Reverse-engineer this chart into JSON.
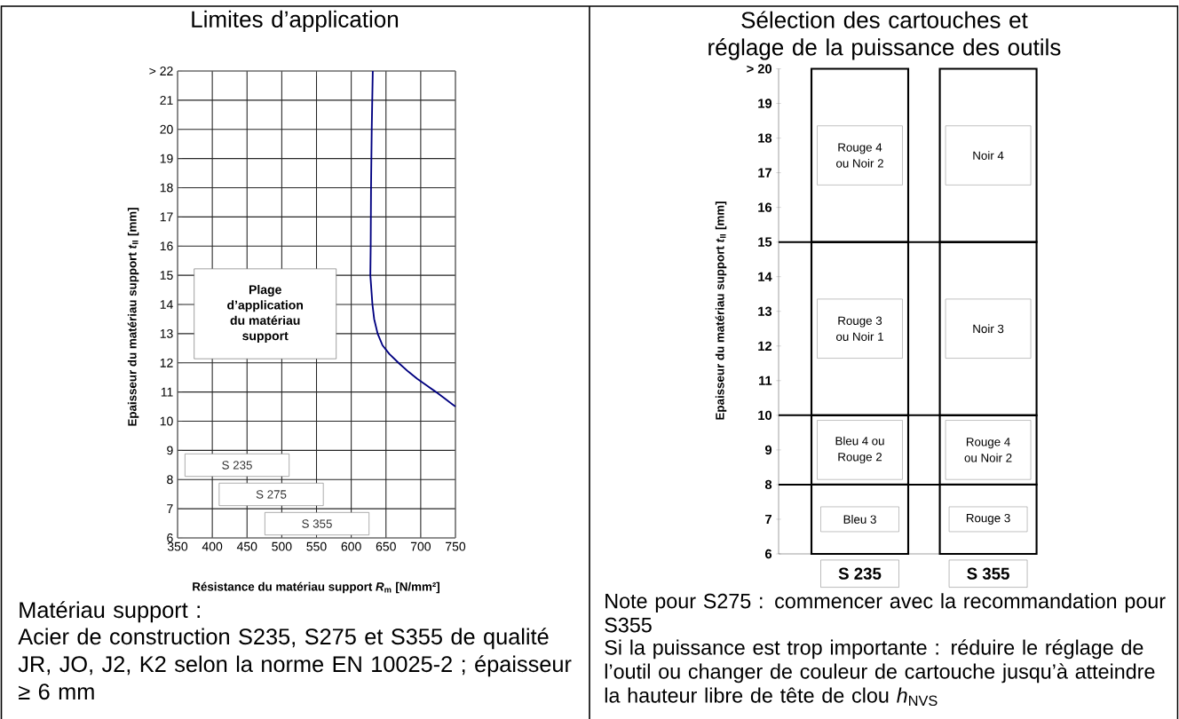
{
  "chart_data": [
    {
      "type": "line",
      "title": "Limites d’application",
      "xlabel": "Résistance du matériau support *R*$_{m}$ [N/mm²]",
      "ylabel": "Epaisseur du matériau support *t*$_{II}$ [mm]",
      "series": [
        {
          "color": "#000080",
          "x": [
            631,
            629.5,
            628.5,
            628,
            627.5,
            629,
            630.5,
            633,
            638,
            645,
            655,
            668,
            682,
            695,
            710,
            722,
            736,
            750
          ],
          "values": [
            22,
            20,
            18,
            16,
            15,
            14.5,
            14,
            13.5,
            13,
            12.6,
            12.3,
            12,
            11.7,
            11.45,
            11.2,
            11,
            10.75,
            10.5
          ]
        }
      ],
      "xlim": [
        350,
        750
      ],
      "xticks": [
        350,
        400,
        450,
        500,
        550,
        600,
        650,
        700,
        750
      ],
      "ylim": [
        6,
        22
      ],
      "yticks": [
        6,
        7,
        8,
        9,
        10,
        11,
        12,
        13,
        14,
        15,
        16,
        17,
        18,
        19,
        20,
        21,
        {
          "value": 22,
          "label": "> 22"
        }
      ],
      "grid": true,
      "annotations": [
        "Plage d’application du matériau support",
        "S 235",
        "S 275",
        "S 355",
        "Matériau support :",
        "Acier de construction S235, S275 et S355 de qualité JR, JO, J2, K2 selon la norme EN 10025-2 ; épaisseur ≥ 6 mm"
      ]
    },
    {
      "type": "bar",
      "title": "Sélection des cartouches et réglage de la puissance des outils",
      "ylabel": "Epaisseur du matériau support *t*$_{II}$ [mm]",
      "categories": [
        "S 235",
        "S 355"
      ],
      "series": [
        {
          "color": "#ffffff",
          "base": [
            6,
            6
          ],
          "values": [
            2,
            2
          ],
          "value_labels": [
            "Bleu 3",
            "Rouge 3"
          ]
        },
        {
          "color": "#ffffff",
          "base": [
            8,
            8
          ],
          "values": [
            2,
            2
          ],
          "value_labels": [
            "Bleu 4 ou Rouge 2",
            "Rouge 4 ou Noir 2"
          ]
        },
        {
          "color": "#ffffff",
          "base": [
            10,
            10
          ],
          "values": [
            5,
            5
          ],
          "value_labels": [
            "Rouge 3 ou Noir 1",
            "Noir 3"
          ]
        },
        {
          "color": "#ffffff",
          "base": [
            15,
            15
          ],
          "values": [
            5,
            5
          ],
          "value_labels": [
            "Rouge 4 ou Noir 2",
            "Noir 4"
          ]
        }
      ],
      "ylim": [
        6,
        20
      ],
      "yticks": [
        6,
        7,
        8,
        9,
        10,
        11,
        12,
        13,
        14,
        15,
        16,
        17,
        18,
        19,
        {
          "value": 20,
          "label": "> 20"
        }
      ],
      "ref_lines": [
        {
          "axis": "y",
          "value": 8,
          "color": "#000000"
        },
        {
          "axis": "y",
          "value": 10,
          "color": "#000000"
        },
        {
          "axis": "y",
          "value": 15,
          "color": "#000000"
        }
      ],
      "annotations": [
        "Note pour S275 : commencer avec la recommandation pour S355",
        "Si la puissance est trop importante : réduire le réglage de l’outil ou changer de couleur de cartouche jusqu’à atteindre la hauteur libre de tête de clou *h*$_{NVS}$"
      ]
    }
  ]
}
